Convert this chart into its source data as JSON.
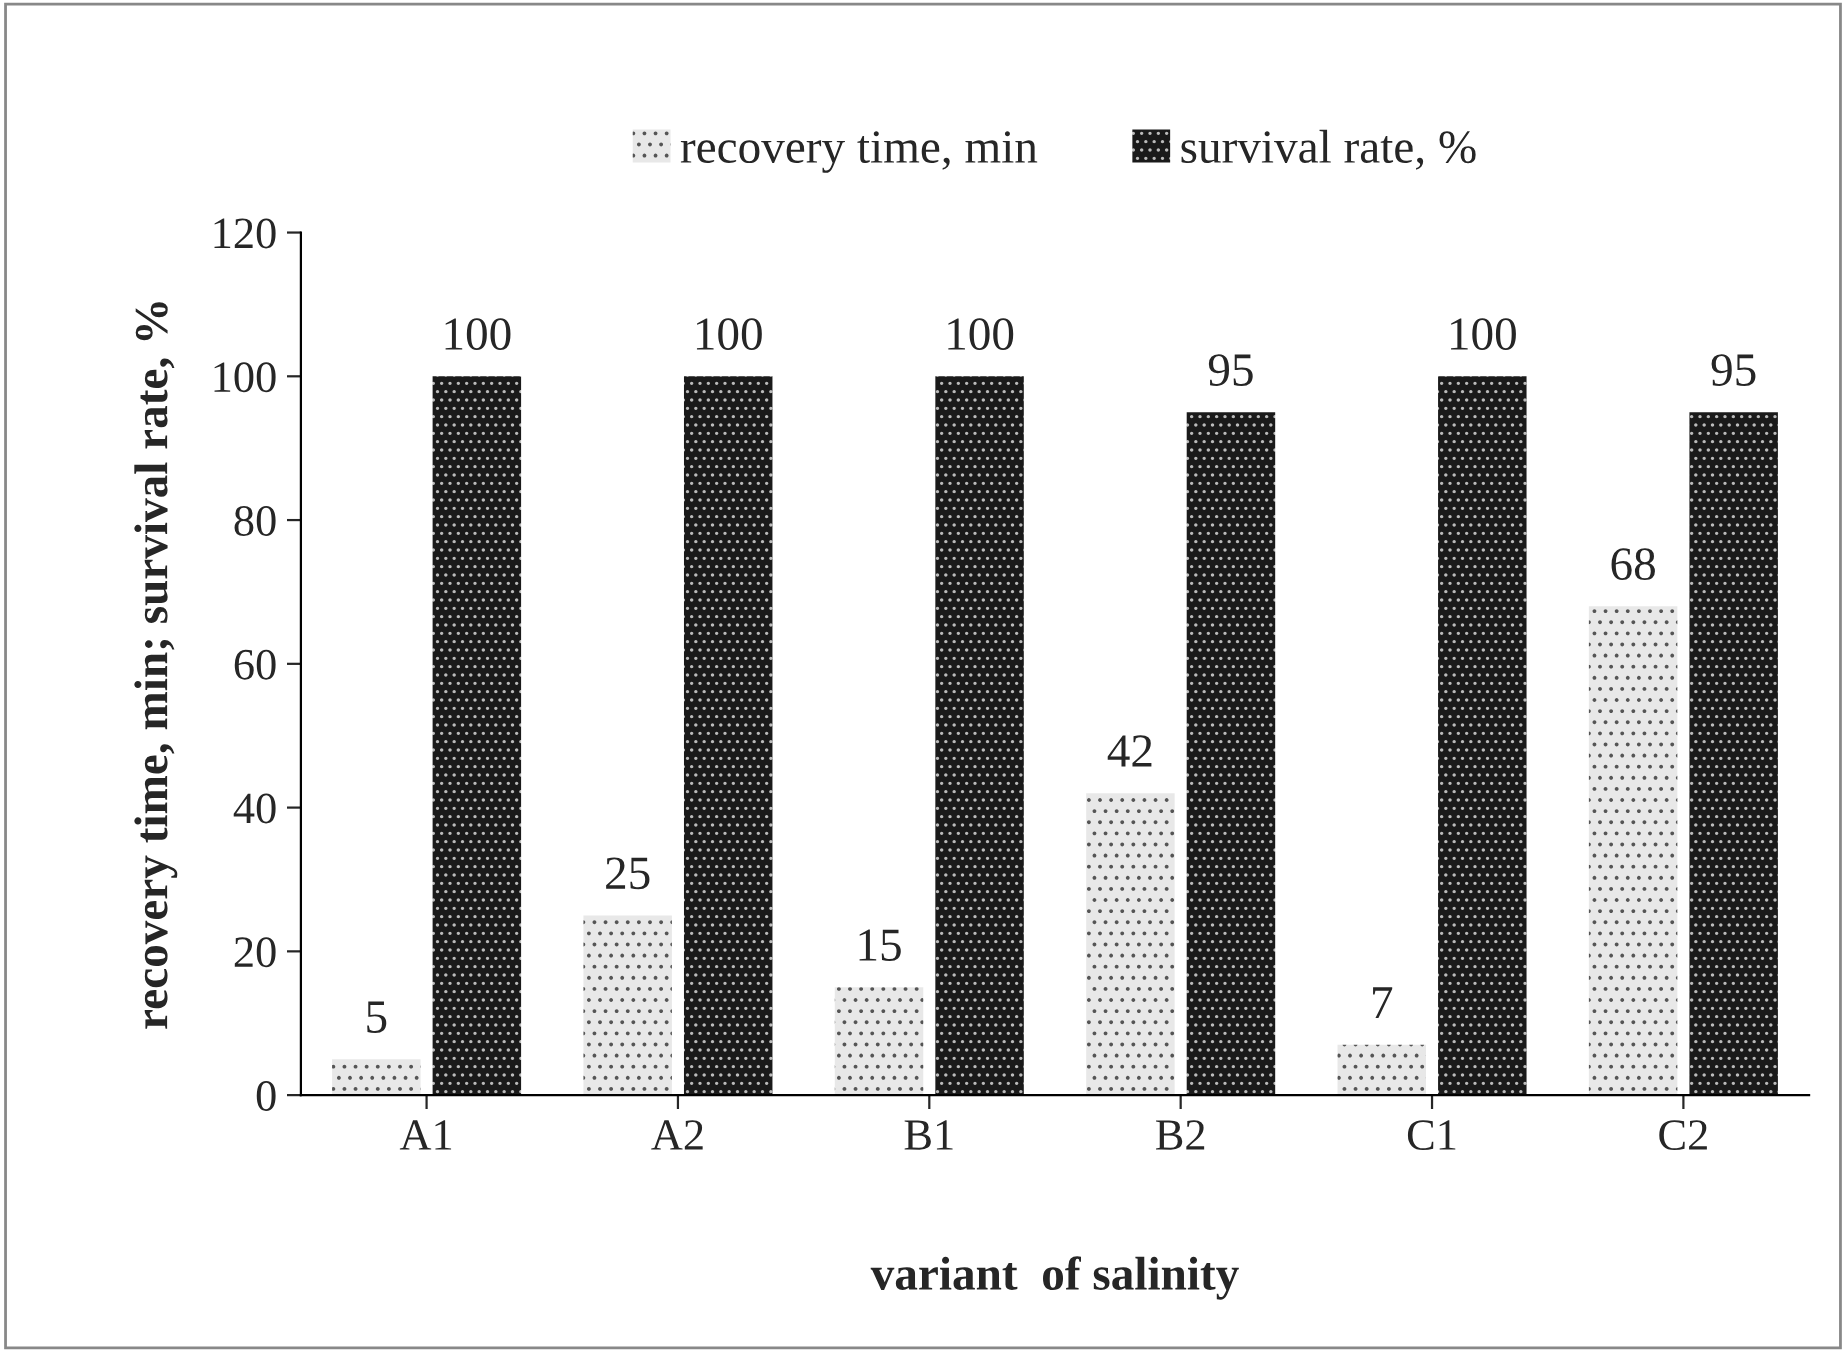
{
  "chart_data": {
    "type": "bar",
    "xlabel": "variant  of salinity",
    "ylabel": "recovery time, min; survival rate, %",
    "categories": [
      "A1",
      "A2",
      "B1",
      "B2",
      "C1",
      "C2"
    ],
    "series": [
      {
        "name": "recovery time, min",
        "color": "#e8e8e8",
        "values": [
          5,
          25,
          15,
          42,
          7,
          68
        ]
      },
      {
        "name": "survival rate, %",
        "color": "#1a1a1a",
        "values": [
          100,
          100,
          100,
          95,
          100,
          95
        ]
      }
    ],
    "ylim": [
      0,
      120
    ],
    "yticks": [
      0,
      20,
      40,
      60,
      80,
      100,
      120
    ],
    "data_labels": true,
    "legend": "top",
    "grid": false
  }
}
